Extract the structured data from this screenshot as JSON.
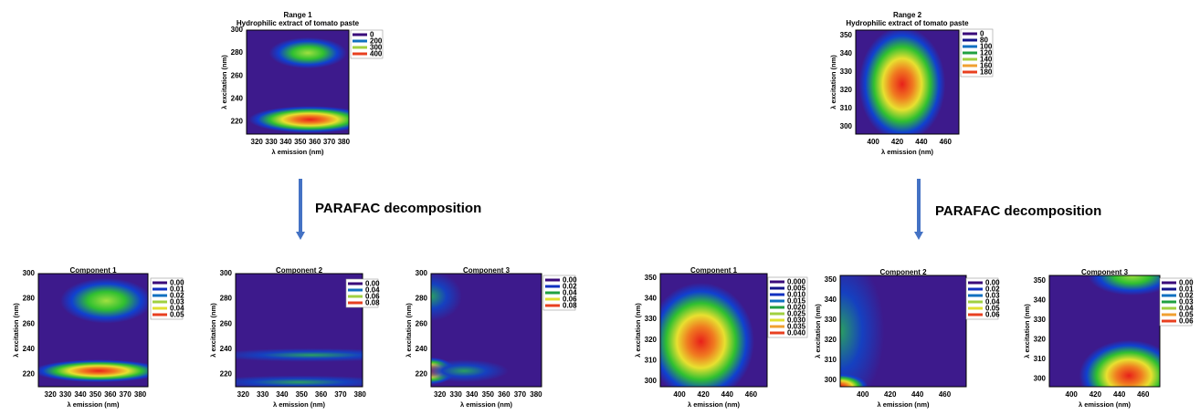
{
  "panels": [
    {
      "title": "Range 1",
      "subtitle": "Hydrophilic extract of tomato paste",
      "ylabel": "λ excitation (nm)",
      "xlabel": "λ emission (nm)",
      "yticks": [
        "300",
        "280",
        "260",
        "240",
        "220"
      ],
      "xticks": [
        "320",
        "330",
        "340",
        "350",
        "360",
        "370",
        "380"
      ],
      "legend": [
        "0",
        "200",
        "300",
        "400"
      ]
    },
    {
      "title": "Range 2",
      "subtitle": "Hydrophilic extract of tomato paste",
      "ylabel": "λ excitation (nm)",
      "xlabel": "λ emission (nm)",
      "yticks": [
        "350",
        "340",
        "330",
        "320",
        "310",
        "300"
      ],
      "xticks": [
        "400",
        "420",
        "440",
        "460"
      ],
      "legend": [
        "0",
        "80",
        "100",
        "120",
        "140",
        "160",
        "180"
      ]
    },
    {
      "title": "Component 1",
      "ylabel": "λ excitation (nm)",
      "xlabel": "λ emission (nm)",
      "yticks": [
        "300",
        "280",
        "260",
        "240",
        "220"
      ],
      "xticks": [
        "320",
        "330",
        "340",
        "350",
        "360",
        "370",
        "380"
      ],
      "legend": [
        "0.00",
        "0.01",
        "0.02",
        "0.03",
        "0.04",
        "0.05"
      ]
    },
    {
      "title": "Component 2",
      "ylabel": "λ excitation (nm)",
      "xlabel": "λ emission (nm)",
      "yticks": [
        "300",
        "280",
        "260",
        "240",
        "220"
      ],
      "xticks": [
        "320",
        "330",
        "340",
        "350",
        "360",
        "370",
        "380"
      ],
      "legend": [
        "0.00",
        "0.04",
        "0.06",
        "0.08"
      ]
    },
    {
      "title": "Component 3",
      "ylabel": "λ excitation (nm)",
      "xlabel": "λ emission (nm)",
      "yticks": [
        "300",
        "280",
        "260",
        "240",
        "220"
      ],
      "xticks": [
        "320",
        "330",
        "340",
        "350",
        "360",
        "370",
        "380"
      ],
      "legend": [
        "0.00",
        "0.02",
        "0.04",
        "0.06",
        "0.08"
      ]
    },
    {
      "title": "Component 1",
      "ylabel": "λ excitation (nm)",
      "xlabel": "λ emission (nm)",
      "yticks": [
        "350",
        "340",
        "330",
        "320",
        "310",
        "300"
      ],
      "xticks": [
        "400",
        "420",
        "440",
        "460"
      ],
      "legend": [
        "0.000",
        "0.005",
        "0.010",
        "0.015",
        "0.020",
        "0.025",
        "0.030",
        "0.035",
        "0.040"
      ]
    },
    {
      "title": "Component 2",
      "ylabel": "λ excitation (nm)",
      "xlabel": "λ emission (nm)",
      "yticks": [
        "350",
        "340",
        "330",
        "320",
        "310",
        "300"
      ],
      "xticks": [
        "400",
        "420",
        "440",
        "460"
      ],
      "legend": [
        "0.00",
        "0.02",
        "0.03",
        "0.04",
        "0.05",
        "0.06"
      ]
    },
    {
      "title": "Component 3",
      "ylabel": "λ excitation (nm)",
      "xlabel": "λ emission (nm)",
      "yticks": [
        "350",
        "340",
        "330",
        "320",
        "310",
        "300"
      ],
      "xticks": [
        "400",
        "420",
        "440",
        "460"
      ],
      "legend": [
        "0.00",
        "0.01",
        "0.02",
        "0.03",
        "0.04",
        "0.05",
        "0.06"
      ]
    }
  ],
  "arrows": [
    {
      "label": "PARAFAC decomposition"
    },
    {
      "label": "PARAFAC decomposition"
    }
  ]
}
